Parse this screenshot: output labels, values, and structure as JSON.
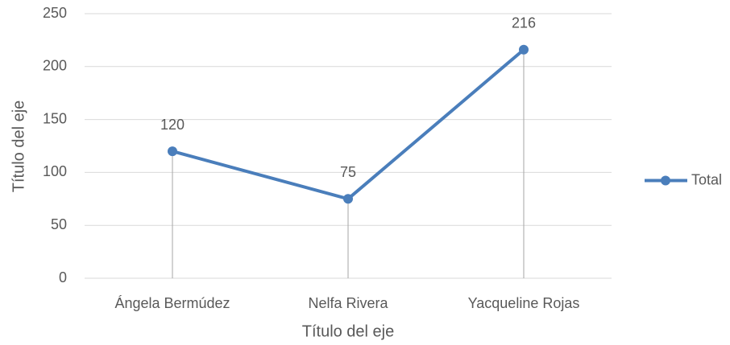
{
  "chart_data": {
    "type": "line",
    "x_label": "Título del eje",
    "y_label": "Título del eje",
    "categories": [
      "Ángela Bermúdez",
      "Nelfa Rivera",
      "Yacqueline Rojas"
    ],
    "series": [
      {
        "name": "Total",
        "color": "#4a7ebb",
        "values": [
          120,
          75,
          216
        ]
      }
    ],
    "ylim": [
      0,
      250
    ],
    "yticks": [
      0,
      50,
      100,
      150,
      200,
      250
    ],
    "grid": true,
    "legend": "right",
    "data_labels": true,
    "drop_lines": true
  }
}
